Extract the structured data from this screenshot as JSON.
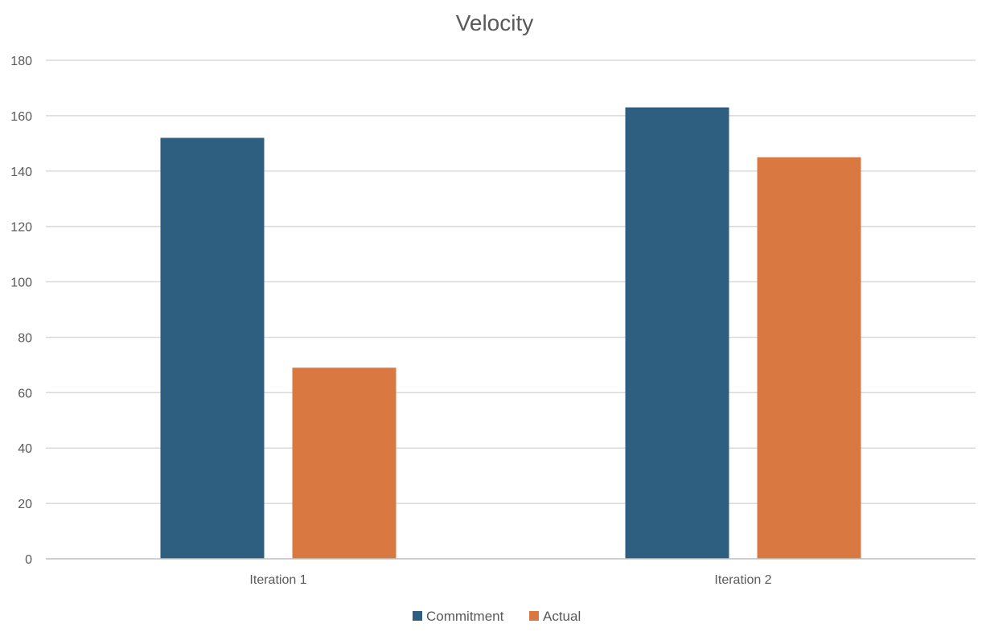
{
  "chart_data": {
    "type": "bar",
    "title": "Velocity",
    "categories": [
      "Iteration 1",
      "Iteration 2"
    ],
    "series": [
      {
        "name": "Commitment",
        "values": [
          152,
          163
        ],
        "color": "#2e5f80"
      },
      {
        "name": "Actual",
        "values": [
          69,
          145
        ],
        "color": "#d97941"
      }
    ],
    "ylim": [
      0,
      180
    ],
    "yticks": [
      0,
      20,
      40,
      60,
      80,
      100,
      120,
      140,
      160,
      180
    ],
    "grid": true,
    "legend": "bottom"
  }
}
